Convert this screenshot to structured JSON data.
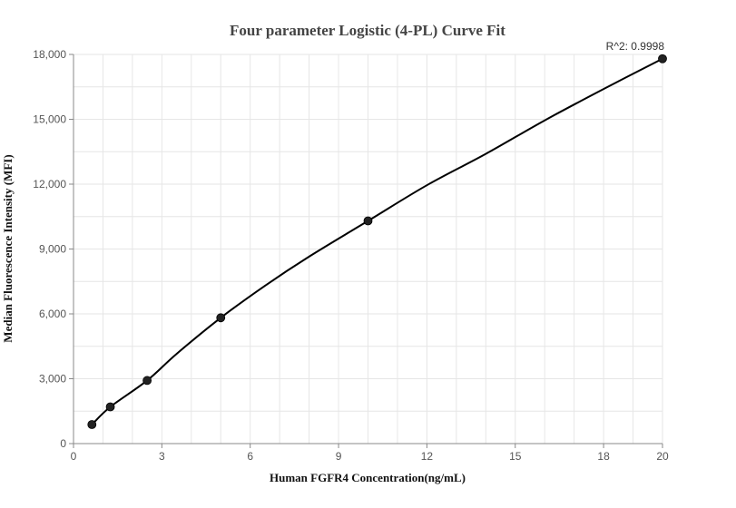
{
  "chart_data": {
    "type": "scatter",
    "title": "Four parameter Logistic (4-PL) Curve Fit",
    "xlabel": "Human FGFR4 Concentration(ng/mL)",
    "ylabel": "Median Fluorescence Intensity (MFI)",
    "xlim": [
      0,
      20
    ],
    "ylim": [
      0,
      18000
    ],
    "x_ticks": [
      0,
      3,
      6,
      9,
      12,
      15,
      18,
      20
    ],
    "x_tick_labels": [
      "0",
      "3",
      "6",
      "9",
      "12",
      "15",
      "18",
      "20"
    ],
    "y_ticks": [
      0,
      3000,
      6000,
      9000,
      12000,
      15000,
      18000
    ],
    "y_tick_labels": [
      "0",
      "3,000",
      "6,000",
      "9,000",
      "12,000",
      "15,000",
      "18,000"
    ],
    "grid": true,
    "colors": {
      "points": "#222222",
      "curve": "#000000",
      "grid": "#e6e6e6",
      "axis": "#888888"
    },
    "series": [
      {
        "type": "scatter",
        "x": [
          0.625,
          1.25,
          2.5,
          5,
          10,
          20
        ],
        "y": [
          880,
          1700,
          2920,
          5820,
          10300,
          17800
        ]
      },
      {
        "type": "line",
        "x": [
          0.625,
          1.25,
          2.5,
          3.5,
          5,
          6.5,
          8,
          10,
          12,
          14,
          16,
          18,
          20
        ],
        "y": [
          880,
          1700,
          2920,
          4150,
          5820,
          7300,
          8650,
          10300,
          11950,
          13400,
          14950,
          16400,
          17800
        ]
      }
    ],
    "annotations": [
      {
        "text": "R^2: 0.9998",
        "x": 20,
        "y": 17800
      }
    ]
  }
}
